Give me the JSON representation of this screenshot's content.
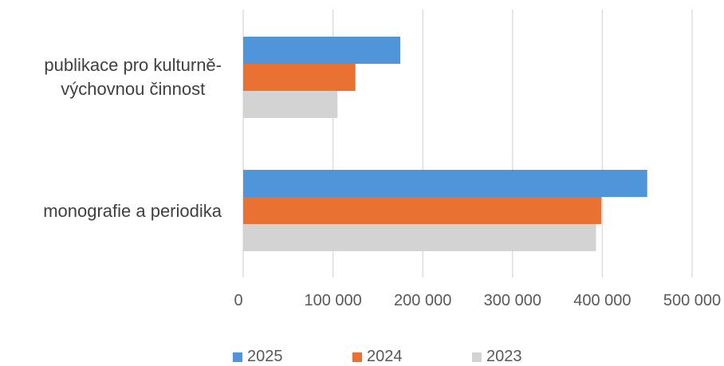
{
  "chart_data": {
    "type": "bar",
    "orientation": "horizontal",
    "categories": [
      "publikace pro kulturně-výchovnou činnost",
      "monografie a periodika"
    ],
    "category_lines": [
      [
        "publikace pro kulturně-",
        "výchovnou činnost"
      ],
      [
        "monografie a periodika"
      ]
    ],
    "series": [
      {
        "name": "2025",
        "color": "#4E95D9",
        "values": [
          175000,
          450000
        ]
      },
      {
        "name": "2024",
        "color": "#E97132",
        "values": [
          125000,
          399000
        ]
      },
      {
        "name": "2023",
        "color": "#D3D3D3",
        "values": [
          105000,
          393000
        ]
      }
    ],
    "xlim": [
      0,
      500000
    ],
    "xticks": [
      "0",
      "100 000",
      "200 000",
      "300 000",
      "400 000",
      "500 000"
    ],
    "grid": true,
    "legend_position": "bottom",
    "gridline_color": "#D9D9D9"
  }
}
